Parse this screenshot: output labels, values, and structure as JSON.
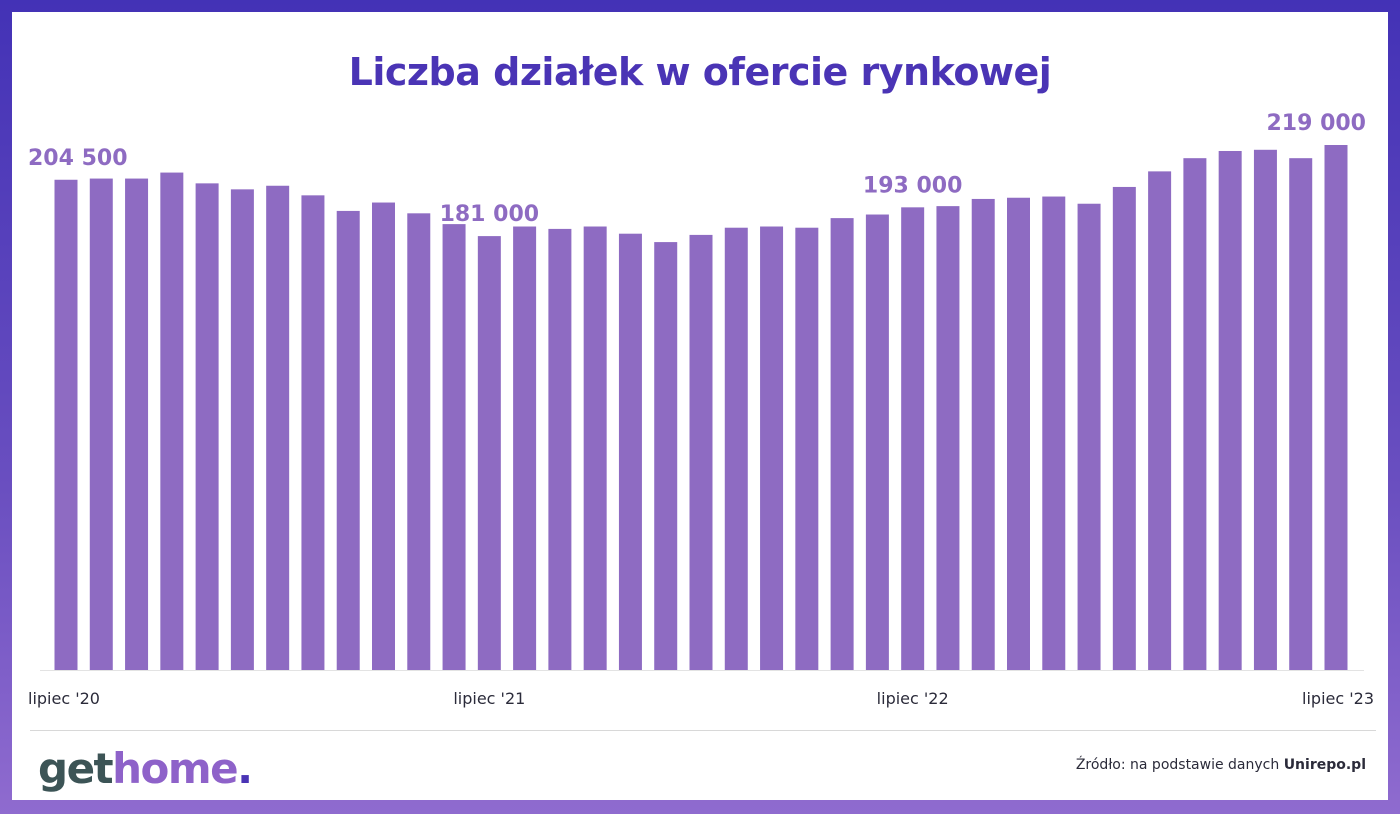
{
  "title": "Liczba działek w ofercie rynkowej",
  "logo": {
    "part1": "get",
    "part2": "home",
    "part3": "."
  },
  "source": {
    "prefix": "Źródło: na podstawie danych",
    "name": "Unirepo.pl"
  },
  "colors": {
    "frame": "#4a34b5",
    "bar": "#8e6bc2",
    "title": "#4a34b5",
    "label": "#8e6bc2",
    "logo_dark": "#3c5456",
    "logo_accent": "#8e62c9"
  },
  "chart_data": {
    "type": "bar",
    "title": "Liczba działek w ofercie rynkowej",
    "xlabel": "",
    "ylabel": "",
    "grid": false,
    "ylim": [
      0,
      219000
    ],
    "x_tick_labels": [
      {
        "index": 0,
        "label": "lipiec '20"
      },
      {
        "index": 12,
        "label": "lipiec '21"
      },
      {
        "index": 24,
        "label": "lipiec '22"
      },
      {
        "index": 36,
        "label": "lipiec '23"
      }
    ],
    "data_labels": [
      {
        "index": 0,
        "label": "204 500"
      },
      {
        "index": 12,
        "label": "181 000"
      },
      {
        "index": 24,
        "label": "193 000"
      },
      {
        "index": 36,
        "label": "219 000"
      }
    ],
    "values": [
      204500,
      205000,
      205000,
      207500,
      203000,
      200500,
      202000,
      198000,
      191500,
      195000,
      190500,
      186000,
      181000,
      185000,
      184000,
      185000,
      182000,
      178500,
      181500,
      184500,
      185000,
      184500,
      188500,
      190000,
      193000,
      193500,
      196500,
      197000,
      197500,
      194500,
      201500,
      208000,
      213500,
      216500,
      217000,
      213500,
      219000
    ]
  }
}
